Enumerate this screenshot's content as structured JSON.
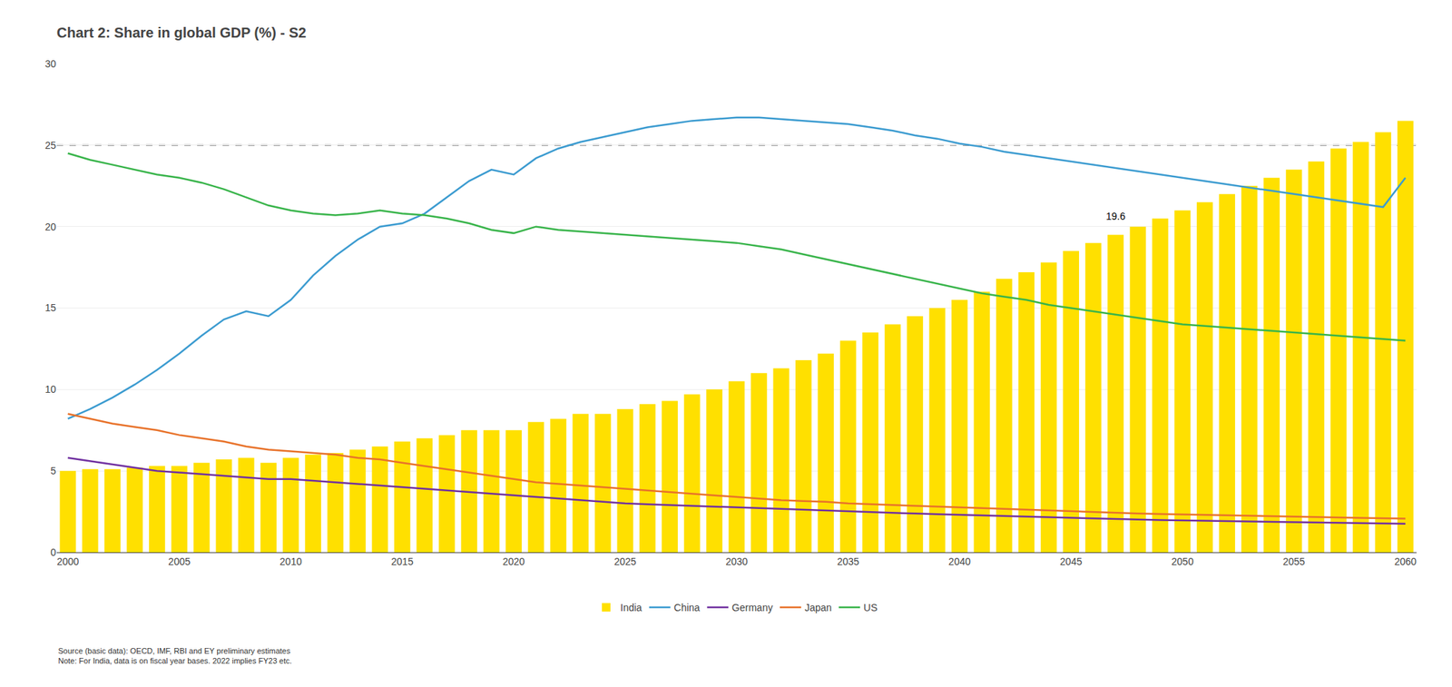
{
  "chart_data": {
    "type": "bar",
    "title": "Chart 2: Share in global GDP (%) - S2",
    "x": [
      2000,
      2001,
      2002,
      2003,
      2004,
      2005,
      2006,
      2007,
      2008,
      2009,
      2010,
      2011,
      2012,
      2013,
      2014,
      2015,
      2016,
      2017,
      2018,
      2019,
      2020,
      2021,
      2022,
      2023,
      2024,
      2025,
      2026,
      2027,
      2028,
      2029,
      2030,
      2031,
      2032,
      2033,
      2034,
      2035,
      2036,
      2037,
      2038,
      2039,
      2040,
      2041,
      2042,
      2043,
      2044,
      2045,
      2046,
      2047,
      2048,
      2049,
      2050,
      2051,
      2052,
      2053,
      2054,
      2055,
      2056,
      2057,
      2058,
      2059,
      2060
    ],
    "series": [
      {
        "name": "India",
        "type": "bar",
        "color": "#FFE000",
        "values": [
          5.0,
          5.1,
          5.1,
          5.2,
          5.3,
          5.3,
          5.5,
          5.7,
          5.8,
          5.5,
          5.8,
          6.0,
          6.1,
          6.3,
          6.5,
          6.8,
          7.0,
          7.2,
          7.5,
          7.5,
          7.5,
          8.0,
          8.2,
          8.5,
          8.5,
          8.8,
          9.1,
          9.3,
          9.7,
          10.0,
          10.5,
          11.0,
          11.3,
          11.8,
          12.2,
          13.0,
          13.5,
          14.0,
          14.5,
          15.0,
          15.5,
          16.0,
          16.8,
          17.2,
          17.8,
          18.5,
          19.0,
          19.5,
          20.0,
          20.5,
          21.0,
          21.5,
          22.0,
          22.5,
          23.0,
          23.5,
          24.0,
          24.8,
          25.2,
          25.8,
          26.5
        ]
      },
      {
        "name": "China",
        "type": "line",
        "color": "#3B9BD0",
        "values": [
          8.2,
          8.8,
          9.5,
          10.3,
          11.2,
          12.2,
          13.3,
          14.3,
          14.8,
          14.5,
          15.5,
          17.0,
          18.2,
          19.2,
          20.0,
          20.2,
          20.8,
          21.8,
          22.8,
          23.5,
          23.2,
          24.2,
          24.8,
          25.2,
          25.5,
          25.8,
          26.1,
          26.3,
          26.5,
          26.6,
          26.7,
          26.7,
          26.6,
          26.5,
          26.4,
          26.3,
          26.1,
          25.9,
          25.6,
          25.4,
          25.1,
          24.9,
          24.6,
          24.4,
          24.2,
          24.0,
          23.8,
          23.6,
          23.4,
          23.2,
          23.0,
          22.8,
          22.6,
          22.4,
          22.2,
          22.0,
          21.8,
          21.6,
          21.4,
          21.2,
          23.0
        ]
      },
      {
        "name": "Germany",
        "type": "line",
        "color": "#7030A0",
        "values": [
          5.8,
          5.6,
          5.4,
          5.2,
          5.0,
          4.9,
          4.8,
          4.7,
          4.6,
          4.5,
          4.5,
          4.4,
          4.3,
          4.2,
          4.1,
          4.0,
          3.9,
          3.8,
          3.7,
          3.6,
          3.5,
          3.4,
          3.3,
          3.2,
          3.1,
          3.0,
          2.95,
          2.9,
          2.85,
          2.8,
          2.75,
          2.7,
          2.65,
          2.6,
          2.55,
          2.5,
          2.46,
          2.42,
          2.38,
          2.34,
          2.3,
          2.26,
          2.22,
          2.18,
          2.14,
          2.1,
          2.07,
          2.04,
          2.01,
          1.98,
          1.95,
          1.93,
          1.91,
          1.89,
          1.87,
          1.85,
          1.83,
          1.81,
          1.79,
          1.77,
          1.75
        ]
      },
      {
        "name": "Japan",
        "type": "line",
        "color": "#E8722A",
        "values": [
          8.5,
          8.2,
          7.9,
          7.7,
          7.5,
          7.2,
          7.0,
          6.8,
          6.5,
          6.3,
          6.2,
          6.1,
          6.0,
          5.8,
          5.7,
          5.5,
          5.3,
          5.1,
          4.9,
          4.7,
          4.5,
          4.3,
          4.2,
          4.1,
          4.0,
          3.9,
          3.8,
          3.7,
          3.6,
          3.5,
          3.4,
          3.3,
          3.2,
          3.15,
          3.1,
          3.0,
          2.95,
          2.9,
          2.85,
          2.8,
          2.75,
          2.7,
          2.65,
          2.6,
          2.55,
          2.5,
          2.45,
          2.42,
          2.38,
          2.35,
          2.32,
          2.29,
          2.26,
          2.23,
          2.2,
          2.17,
          2.15,
          2.13,
          2.11,
          2.09,
          2.07
        ]
      },
      {
        "name": "US",
        "type": "line",
        "color": "#38B44A",
        "values": [
          24.5,
          24.1,
          23.8,
          23.5,
          23.2,
          23.0,
          22.7,
          22.3,
          21.8,
          21.3,
          21.0,
          20.8,
          20.7,
          20.8,
          21.0,
          20.8,
          20.7,
          20.5,
          20.2,
          19.8,
          19.6,
          20.0,
          19.8,
          19.7,
          19.6,
          19.5,
          19.4,
          19.3,
          19.2,
          19.1,
          19.0,
          18.8,
          18.6,
          18.3,
          18.0,
          17.7,
          17.4,
          17.1,
          16.8,
          16.5,
          16.2,
          15.9,
          15.7,
          15.5,
          15.2,
          15.0,
          14.8,
          14.6,
          14.4,
          14.2,
          14.0,
          13.9,
          13.8,
          13.7,
          13.6,
          13.5,
          13.4,
          13.3,
          13.2,
          13.1,
          13.0
        ]
      }
    ],
    "hlines": [
      {
        "y": 25,
        "color": "#808080",
        "line_style": "dashed"
      }
    ],
    "annotations": [
      {
        "text": "19.6",
        "x": 2046.5,
        "y": 20.2
      }
    ],
    "source": "Source (basic data): OECD, IMF, RBI and EY preliminary estimates\nNote: For India, data is on fiscal year bases. 2022 implies FY23 etc.",
    "xlim": [
      1999.5,
      2060.5
    ],
    "xticks": [
      2000,
      2005,
      2010,
      2015,
      2020,
      2025,
      2030,
      2035,
      2040,
      2045,
      2050,
      2055,
      2060
    ],
    "ylim": [
      0,
      30
    ],
    "yticks": [
      0,
      5,
      10,
      15,
      20,
      25,
      30
    ],
    "grid": true,
    "legend": "bottom"
  }
}
